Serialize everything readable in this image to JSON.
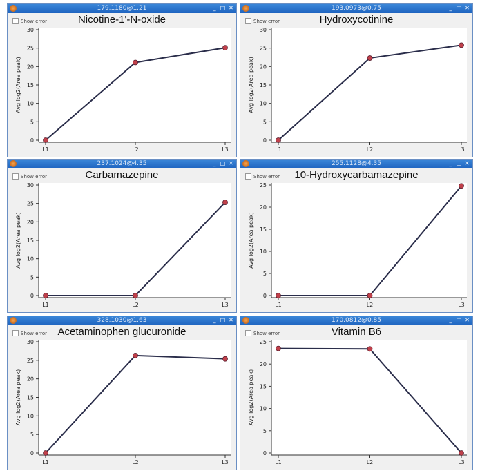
{
  "window_controls": {
    "minimize": "_",
    "maximize": "□",
    "close": "✕"
  },
  "chart_data": [
    {
      "type": "line",
      "window_title": "179.1180@1.21",
      "title": "Nicotine-1'-N-oxide",
      "checkbox": "Show error",
      "ylabel": "Avg log2(Area peak)",
      "categories": [
        "L1",
        "L2",
        "L3"
      ],
      "values": [
        0,
        21.1,
        25.1
      ],
      "ylim": [
        0,
        30
      ],
      "yticks": [
        0,
        5,
        10,
        15,
        20,
        25,
        30
      ]
    },
    {
      "type": "line",
      "window_title": "193.0973@0.75",
      "title": "Hydroxycotinine",
      "checkbox": "Show error",
      "ylabel": "Avg log2(Area peak)",
      "categories": [
        "L1",
        "L2",
        "L3"
      ],
      "values": [
        0,
        22.3,
        25.8
      ],
      "ylim": [
        0,
        30
      ],
      "yticks": [
        0,
        5,
        10,
        15,
        20,
        25,
        30
      ]
    },
    {
      "type": "line",
      "window_title": "237.1024@4.35",
      "title": "Carbamazepine",
      "checkbox": "Show error",
      "ylabel": "Avg log2(Area peak)",
      "categories": [
        "L1",
        "L2",
        "L3"
      ],
      "values": [
        0,
        0,
        25.3
      ],
      "ylim": [
        0,
        30
      ],
      "yticks": [
        0,
        5,
        10,
        15,
        20,
        25,
        30
      ]
    },
    {
      "type": "line",
      "window_title": "255.1128@4.35",
      "title": "10-Hydroxycarbamazepine",
      "checkbox": "Show error",
      "ylabel": "Avg log2(Area peak)",
      "categories": [
        "L1",
        "L2",
        "L3"
      ],
      "values": [
        0,
        0,
        24.8
      ],
      "ylim": [
        0,
        25
      ],
      "yticks": [
        0,
        5,
        10,
        15,
        20,
        25
      ]
    },
    {
      "type": "line",
      "window_title": "328.1030@1.63",
      "title": "Acetaminophen glucuronide",
      "checkbox": "Show error",
      "ylabel": "Avg log2(Area peak)",
      "categories": [
        "L1",
        "L2",
        "L3"
      ],
      "values": [
        0,
        26.3,
        25.4
      ],
      "ylim": [
        0,
        30
      ],
      "yticks": [
        0,
        5,
        10,
        15,
        20,
        25,
        30
      ]
    },
    {
      "type": "line",
      "window_title": "170.0812@0.85",
      "title": "Vitamin B6",
      "checkbox": "Show error",
      "ylabel": "Avg log2(Area peak)",
      "categories": [
        "L1",
        "L2",
        "L3"
      ],
      "values": [
        23.5,
        23.4,
        0
      ],
      "ylim": [
        0,
        25
      ],
      "yticks": [
        0,
        5,
        10,
        15,
        20,
        25
      ]
    }
  ],
  "colors": {
    "line": "#2a2d4a",
    "marker": "#c0404a",
    "titlebar": "#2a72cc"
  }
}
